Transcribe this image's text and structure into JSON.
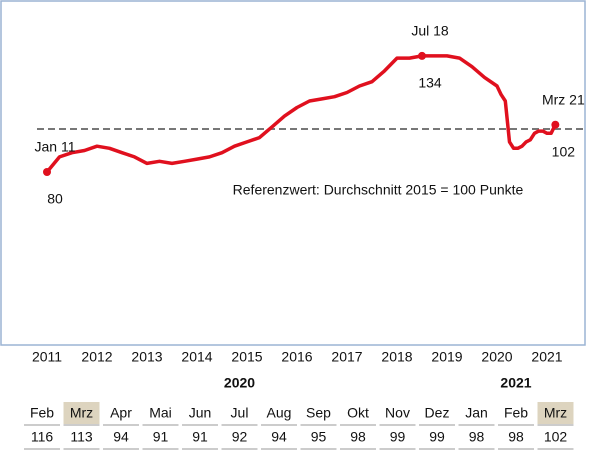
{
  "chart_data": {
    "type": "line",
    "x": [
      2011,
      2011.25,
      2011.5,
      2011.75,
      2012,
      2012.25,
      2012.5,
      2012.75,
      2013,
      2013.25,
      2013.5,
      2013.75,
      2014,
      2014.25,
      2014.5,
      2014.75,
      2015,
      2015.25,
      2015.5,
      2015.75,
      2016,
      2016.25,
      2016.5,
      2016.75,
      2017,
      2017.25,
      2017.5,
      2017.75,
      2018,
      2018.25,
      2018.5,
      2018.75,
      2019,
      2019.25,
      2019.5,
      2019.75,
      2020,
      2020.083,
      2020.167,
      2020.25,
      2020.333,
      2020.417,
      2020.5,
      2020.583,
      2020.667,
      2020.75,
      2020.833,
      2020.917,
      2021,
      2021.083,
      2021.167
    ],
    "series": [
      {
        "color": "#e0101e",
        "values": [
          80,
          87,
          89,
          90,
          92,
          91,
          89,
          87,
          84,
          85,
          84,
          85,
          86,
          87,
          89,
          92,
          94,
          96,
          101,
          106,
          110,
          113,
          114,
          115,
          117,
          120,
          122,
          127,
          133,
          133,
          134,
          134,
          134,
          133,
          129,
          124,
          120,
          116,
          113,
          94,
          91,
          91,
          92,
          94,
          95,
          98,
          99,
          99,
          98,
          98,
          102
        ]
      }
    ],
    "xlim": [
      2010.2,
      2021.9
    ],
    "xticks": [
      2011,
      2012,
      2013,
      2014,
      2015,
      2016,
      2017,
      2018,
      2019,
      2020,
      2021
    ],
    "ylim": [
      60,
      160
    ],
    "reference": {
      "value": 100,
      "label": "Referenzwert:  Durchschnitt 2015 = 100 Punkte"
    },
    "annotations": [
      {
        "x": 2011,
        "label": "Jan 11",
        "value": 80
      },
      {
        "x": 2018.5,
        "label": "Jul 18",
        "value": 134
      },
      {
        "x": 2021.167,
        "label": "Mrz 21",
        "value": 102
      }
    ]
  },
  "table": {
    "groups": [
      {
        "year": "2020",
        "months": [
          {
            "month": "Feb",
            "value": 116,
            "highlight": false
          },
          {
            "month": "Mrz",
            "value": 113,
            "highlight": true
          },
          {
            "month": "Apr",
            "value": 94,
            "highlight": false
          },
          {
            "month": "Mai",
            "value": 91,
            "highlight": false
          },
          {
            "month": "Jun",
            "value": 91,
            "highlight": false
          },
          {
            "month": "Jul",
            "value": 92,
            "highlight": false
          },
          {
            "month": "Aug",
            "value": 94,
            "highlight": false
          },
          {
            "month": "Sep",
            "value": 95,
            "highlight": false
          },
          {
            "month": "Okt",
            "value": 98,
            "highlight": false
          },
          {
            "month": "Nov",
            "value": 99,
            "highlight": false
          },
          {
            "month": "Dez",
            "value": 99,
            "highlight": false
          }
        ]
      },
      {
        "year": "2021",
        "months": [
          {
            "month": "Jan",
            "value": 98,
            "highlight": false
          },
          {
            "month": "Feb",
            "value": 98,
            "highlight": false
          },
          {
            "month": "Mrz",
            "value": 102,
            "highlight": true
          }
        ]
      }
    ]
  }
}
